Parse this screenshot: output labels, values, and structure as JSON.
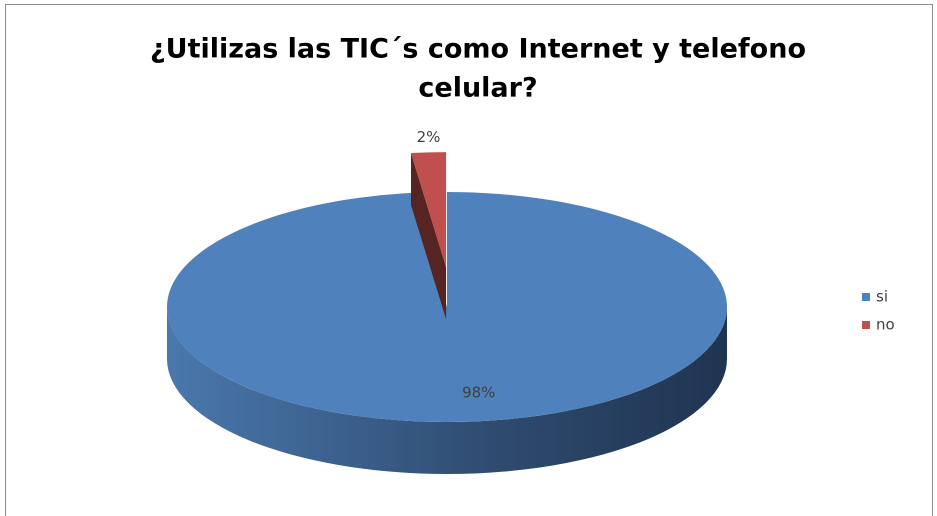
{
  "chart_data": {
    "type": "pie",
    "title": [
      "¿Utilizas las TIC´s como Internet y telefono",
      "celular?"
    ],
    "categories": [
      "si",
      "no"
    ],
    "values": [
      98,
      2
    ],
    "value_labels": [
      "98%",
      "2%"
    ],
    "colors": [
      "#4f81bd",
      "#c0504d"
    ],
    "legend": "right"
  }
}
